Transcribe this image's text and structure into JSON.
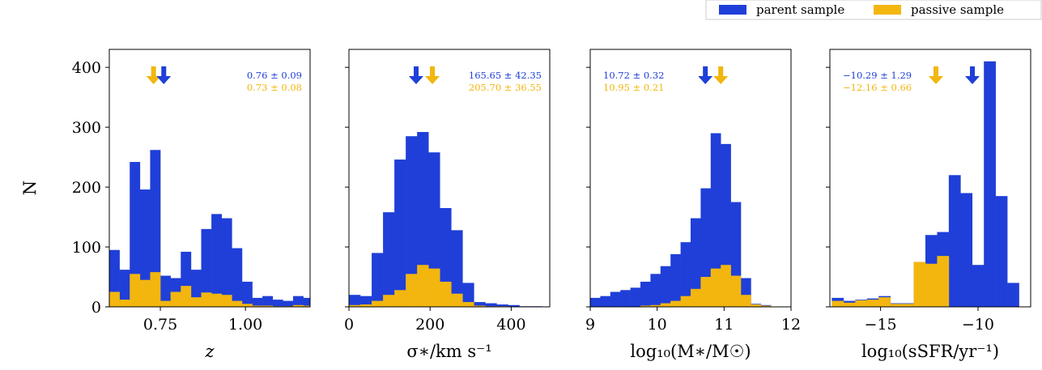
{
  "colors": {
    "parent": "#1f3fd8",
    "passive": "#f2b60f"
  },
  "legend": {
    "parent_label": "parent sample",
    "passive_label": "passive sample",
    "placement": "top-right"
  },
  "ylabel": "N",
  "chart_data": [
    {
      "type": "histogram",
      "xlabel": "z",
      "xlim": [
        0.6,
        1.19
      ],
      "ylim": [
        0,
        430
      ],
      "xticks": [
        "0.75",
        "1.00"
      ],
      "xtick_values": [
        0.75,
        1.0
      ],
      "yticks": [
        "0",
        "100",
        "200",
        "300",
        "400"
      ],
      "ytick_values": [
        0,
        100,
        200,
        300,
        400
      ],
      "bin_edges": [
        0.6,
        0.63,
        0.66,
        0.69,
        0.72,
        0.75,
        0.78,
        0.81,
        0.84,
        0.87,
        0.9,
        0.93,
        0.96,
        0.99,
        1.02,
        1.05,
        1.08,
        1.11,
        1.14,
        1.17,
        1.2
      ],
      "series": [
        {
          "name": "parent sample",
          "values": [
            95,
            62,
            242,
            196,
            262,
            52,
            48,
            92,
            62,
            130,
            155,
            148,
            98,
            42,
            15,
            18,
            12,
            10,
            18,
            15
          ]
        },
        {
          "name": "passive sample",
          "values": [
            25,
            12,
            55,
            45,
            58,
            10,
            25,
            35,
            16,
            24,
            22,
            20,
            10,
            5,
            2,
            2,
            1,
            1,
            3,
            2
          ]
        }
      ],
      "annotations": {
        "parent_text": "0.76 ± 0.09",
        "passive_text": "0.73 ± 0.08",
        "parent_mean": 0.76,
        "passive_mean": 0.73,
        "position": "top-right"
      }
    },
    {
      "type": "histogram",
      "xlabel": "σ∗/km s⁻¹",
      "xlim": [
        0,
        495
      ],
      "ylim": [
        0,
        430
      ],
      "xticks": [
        "0",
        "200",
        "400"
      ],
      "xtick_values": [
        0,
        200,
        400
      ],
      "bin_edges": [
        0,
        28,
        56,
        84,
        112,
        140,
        168,
        196,
        224,
        252,
        280,
        308,
        336,
        364,
        392,
        420,
        448,
        476
      ],
      "series": [
        {
          "name": "parent sample",
          "values": [
            20,
            18,
            90,
            158,
            246,
            285,
            292,
            258,
            165,
            128,
            40,
            8,
            6,
            4,
            3,
            1,
            1
          ]
        },
        {
          "name": "passive sample",
          "values": [
            3,
            4,
            10,
            20,
            28,
            55,
            70,
            64,
            42,
            22,
            8,
            2,
            1,
            1,
            0,
            0,
            0
          ]
        }
      ],
      "annotations": {
        "parent_text": "165.65 ± 42.35",
        "passive_text": "205.70 ± 36.55",
        "parent_mean": 165.65,
        "passive_mean": 205.7,
        "position": "top-right"
      }
    },
    {
      "type": "histogram",
      "xlabel": "log₁₀(M∗/M☉)",
      "xlim": [
        9,
        12
      ],
      "ylim": [
        0,
        430
      ],
      "xticks": [
        "9",
        "10",
        "11",
        "12"
      ],
      "xtick_values": [
        9,
        10,
        11,
        12
      ],
      "bin_edges": [
        9.0,
        9.15,
        9.3,
        9.45,
        9.6,
        9.75,
        9.9,
        10.05,
        10.2,
        10.35,
        10.5,
        10.65,
        10.8,
        10.95,
        11.1,
        11.25,
        11.4,
        11.55,
        11.7
      ],
      "series": [
        {
          "name": "parent sample",
          "values": [
            15,
            18,
            25,
            28,
            32,
            42,
            55,
            68,
            88,
            108,
            148,
            198,
            290,
            272,
            175,
            48,
            5,
            3
          ]
        },
        {
          "name": "passive sample",
          "values": [
            0,
            0,
            0,
            0,
            0,
            2,
            3,
            6,
            10,
            18,
            30,
            50,
            64,
            70,
            52,
            20,
            4,
            2
          ]
        }
      ],
      "annotations": {
        "parent_text": "10.72 ± 0.32",
        "passive_text": "10.95 ± 0.21",
        "parent_mean": 10.72,
        "passive_mean": 10.95,
        "position": "top-left"
      }
    },
    {
      "type": "histogram",
      "xlabel": "log₁₀(sSFR/yr⁻¹)",
      "xlim": [
        -17.6,
        -7.3
      ],
      "ylim": [
        0,
        430
      ],
      "xticks": [
        "−15",
        "−10"
      ],
      "xtick_values": [
        -15,
        -10
      ],
      "bin_edges": [
        -17.5,
        -16.9,
        -16.3,
        -15.7,
        -15.1,
        -14.5,
        -13.9,
        -13.3,
        -12.7,
        -12.1,
        -11.5,
        -10.9,
        -10.3,
        -9.7,
        -9.1,
        -8.5,
        -7.9
      ],
      "series": [
        {
          "name": "parent sample",
          "values": [
            15,
            10,
            12,
            14,
            18,
            6,
            6,
            75,
            120,
            125,
            220,
            190,
            70,
            410,
            185,
            40
          ]
        },
        {
          "name": "passive sample",
          "values": [
            10,
            7,
            11,
            12,
            16,
            5,
            5,
            75,
            72,
            85,
            0,
            0,
            0,
            0,
            0,
            0
          ]
        }
      ],
      "annotations": {
        "parent_text": "−10.29 ± 1.29",
        "passive_text": "−12.16 ± 0.66",
        "parent_mean": -10.29,
        "passive_mean": -12.16,
        "position": "top-left"
      }
    }
  ]
}
